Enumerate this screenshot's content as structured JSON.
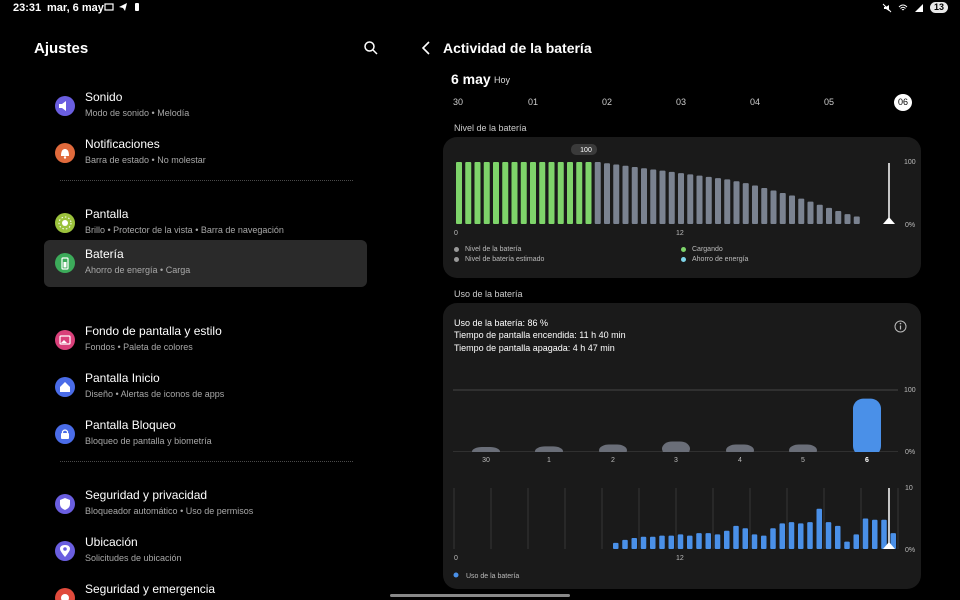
{
  "status_bar": {
    "time": "23:31",
    "date": "mar, 6 may",
    "battery": "13"
  },
  "left_panel": {
    "title": "Ajustes",
    "items": [
      {
        "title": "Sonido",
        "subtitle": "Modo de sonido  •  Melodía",
        "icon": "volume-icon",
        "color": "#6a5ee0"
      },
      {
        "title": "Notificaciones",
        "subtitle": "Barra de estado  •  No molestar",
        "icon": "bell-icon",
        "color": "#e06a3c"
      },
      {
        "title": "Pantalla",
        "subtitle": "Brillo  •  Protector de la vista  •  Barra de navegación",
        "icon": "sun-icon",
        "color": "#9bc23c"
      },
      {
        "title": "Batería",
        "subtitle": "Ahorro de energía  •  Carga",
        "icon": "battery-icon",
        "color": "#3cab5a"
      },
      {
        "title": "Fondo de pantalla y estilo",
        "subtitle": "Fondos  •  Paleta de colores",
        "icon": "wallpaper-icon",
        "color": "#d9407a"
      },
      {
        "title": "Pantalla Inicio",
        "subtitle": "Diseño  •  Alertas de iconos de apps",
        "icon": "home-icon",
        "color": "#4a6ce8"
      },
      {
        "title": "Pantalla Bloqueo",
        "subtitle": "Bloqueo de pantalla y biometría",
        "icon": "lock-icon",
        "color": "#4a6ce8"
      },
      {
        "title": "Seguridad y privacidad",
        "subtitle": "Bloqueador automático  •  Uso de permisos",
        "icon": "shield-icon",
        "color": "#6a5ee0"
      },
      {
        "title": "Ubicación",
        "subtitle": "Solicitudes de ubicación",
        "icon": "location-icon",
        "color": "#6a5ee0"
      },
      {
        "title": "Seguridad y emergencia",
        "subtitle": "",
        "icon": "emergency-icon",
        "color": "#e04a3c"
      }
    ]
  },
  "right_panel": {
    "title": "Actividad de la batería",
    "day": "6 may",
    "day_sub": "Hoy",
    "day_tabs": [
      "30",
      "01",
      "02",
      "03",
      "04",
      "05",
      "06"
    ],
    "level_section": "Nivel de la batería",
    "usage_section": "Uso de la batería",
    "usage_lines": [
      "Uso de la batería: 86 %",
      "Tiempo de pantalla encendida: 11 h 40 min",
      "Tiempo de pantalla apagada: 4 h 47 min"
    ],
    "colors": {
      "charging": "#7ed46a",
      "level": "#7a8290",
      "usage": "#4a90e8",
      "saver": "#7ed4e8"
    }
  },
  "chart_data": [
    {
      "type": "bar",
      "title": "Nivel de la batería",
      "x_ticks": [
        "0",
        "12"
      ],
      "y_ticks": [
        "100",
        "0%"
      ],
      "ylim": [
        0,
        100
      ],
      "peak_label": "100",
      "legend": [
        "Nivel de la batería",
        "Nivel de batería estimado",
        "Cargando",
        "Ahorro de energía"
      ],
      "series": [
        {
          "name": "Cargando",
          "values": [
            100,
            100,
            100,
            100,
            100,
            100,
            100,
            100,
            100,
            100,
            100,
            100,
            100,
            100,
            100
          ]
        },
        {
          "name": "Nivel de la batería",
          "values": [
            100,
            98,
            96,
            94,
            92,
            90,
            88,
            86,
            84,
            82,
            80,
            78,
            76,
            74,
            72,
            69,
            66,
            62,
            58,
            54,
            50,
            46,
            41,
            36,
            31,
            26,
            21,
            16,
            12
          ]
        }
      ]
    },
    {
      "type": "bar",
      "title": "Uso de la batería",
      "categories": [
        "30",
        "1",
        "2",
        "3",
        "4",
        "5",
        "6"
      ],
      "y_ticks": [
        "100",
        "0%"
      ],
      "ylim": [
        0,
        100
      ],
      "values": [
        8,
        9,
        12,
        17,
        12,
        12,
        86
      ]
    },
    {
      "type": "bar",
      "title": "Uso de la batería (hoy)",
      "x_ticks": [
        "0",
        "12"
      ],
      "y_ticks": [
        "10",
        "0%"
      ],
      "ylim": [
        0,
        10
      ],
      "legend": [
        "Uso de la batería"
      ],
      "values": [
        1,
        1.5,
        1.8,
        2,
        2,
        2.2,
        2.2,
        2.4,
        2.2,
        2.6,
        2.6,
        2.4,
        3,
        3.8,
        3.4,
        2.4,
        2.2,
        3.4,
        4.2,
        4.4,
        4.2,
        4.4,
        6.6,
        4.4,
        3.8,
        1.2,
        2.4,
        5,
        4.8,
        4.8,
        2.6
      ]
    }
  ]
}
